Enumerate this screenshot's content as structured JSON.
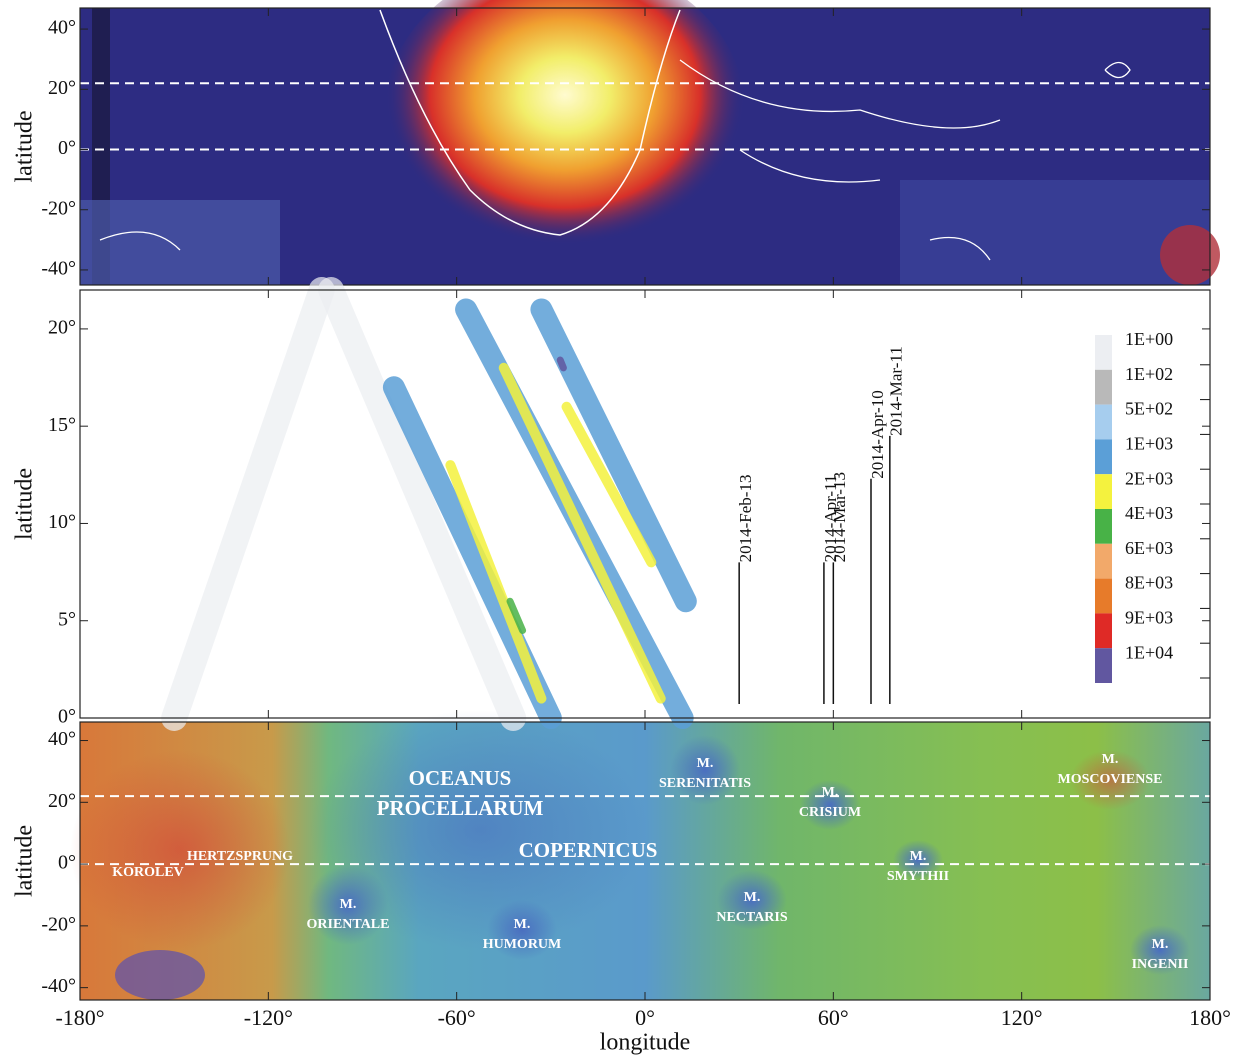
{
  "chart_data": [
    {
      "type": "heatmap",
      "ylabel": "latitude",
      "xlim": [
        -180,
        180
      ],
      "ylim": [
        -45,
        47
      ],
      "yticks": [
        {
          "value": 40,
          "label": "40°"
        },
        {
          "value": 20,
          "label": "20°"
        },
        {
          "value": 0,
          "label": "0°"
        },
        {
          "value": -20,
          "label": "-20°"
        },
        {
          "value": -40,
          "label": "-40°"
        }
      ],
      "reference_lines": [
        22,
        0
      ]
    },
    {
      "type": "contour",
      "ylabel": "latitude",
      "xlim": [
        -180,
        180
      ],
      "ylim": [
        0,
        22
      ],
      "yticks": [
        {
          "value": 0,
          "label": "0°"
        },
        {
          "value": 5,
          "label": "5°"
        },
        {
          "value": 10,
          "label": "10°"
        },
        {
          "value": 15,
          "label": "15°"
        },
        {
          "value": 20,
          "label": "20°"
        }
      ],
      "legend": [
        {
          "value": 1,
          "label": "1E+00",
          "color": "#eceef2"
        },
        {
          "value": 100,
          "label": "1E+02",
          "color": "#b9b9b9"
        },
        {
          "value": 500,
          "label": "5E+02",
          "color": "#a6cdee"
        },
        {
          "value": 1000,
          "label": "1E+03",
          "color": "#5b9fd7"
        },
        {
          "value": 2000,
          "label": "2E+03",
          "color": "#f4f23e"
        },
        {
          "value": 4000,
          "label": "4E+03",
          "color": "#48b247"
        },
        {
          "value": 6000,
          "label": "6E+03",
          "color": "#f2a96a"
        },
        {
          "value": 8000,
          "label": "8E+03",
          "color": "#e77b2a"
        },
        {
          "value": 9000,
          "label": "9E+03",
          "color": "#df2a26"
        },
        {
          "value": 10000,
          "label": "1E+04",
          "color": "#6157a0"
        }
      ],
      "tracks": [
        {
          "x": [
            -150,
            -103
          ],
          "y": [
            0,
            22
          ],
          "value": 1
        },
        {
          "x": [
            -100,
            -42
          ],
          "y": [
            22,
            0
          ],
          "value": 1
        },
        {
          "x": [
            -80,
            -30
          ],
          "y": [
            17,
            0
          ],
          "value": 1000
        },
        {
          "x": [
            -62,
            -33
          ],
          "y": [
            13,
            1
          ],
          "value": 2000
        },
        {
          "x": [
            -57,
            12
          ],
          "y": [
            21,
            0
          ],
          "value": 1000
        },
        {
          "x": [
            -45,
            5
          ],
          "y": [
            18,
            1
          ],
          "value": 2000
        },
        {
          "x": [
            -33,
            13
          ],
          "y": [
            21,
            6
          ],
          "value": 1000
        },
        {
          "x": [
            -25,
            2
          ],
          "y": [
            16,
            8
          ],
          "value": 2000
        },
        {
          "x": [
            -43,
            -39
          ],
          "y": [
            6,
            4.5
          ],
          "value": 4000
        },
        {
          "x": [
            -27,
            -26
          ],
          "y": [
            18.4,
            18
          ],
          "value": 10000
        }
      ],
      "annotations": [
        {
          "label": "2014-Feb-13",
          "x": 30,
          "y": 8
        },
        {
          "label": "2014-Apr-11",
          "x": 57,
          "y": 8
        },
        {
          "label": "2014-Mar-13",
          "x": 60,
          "y": 8
        },
        {
          "label": "2014-Apr-10",
          "x": 72,
          "y": 12.3
        },
        {
          "label": "2014-Mar-11",
          "x": 78,
          "y": 14.5
        }
      ]
    },
    {
      "type": "map",
      "ylabel": "latitude",
      "xlabel": "longitude",
      "xlim": [
        -180,
        180
      ],
      "ylim": [
        -44,
        46
      ],
      "yticks": [
        {
          "value": 40,
          "label": "40°"
        },
        {
          "value": 20,
          "label": "20°"
        },
        {
          "value": 0,
          "label": "0°"
        },
        {
          "value": -20,
          "label": "-20°"
        },
        {
          "value": -40,
          "label": "-40°"
        }
      ],
      "xticks": [
        {
          "value": -180,
          "label": "-180°"
        },
        {
          "value": -120,
          "label": "-120°"
        },
        {
          "value": -60,
          "label": "-60°"
        },
        {
          "value": 0,
          "label": "0°"
        },
        {
          "value": 60,
          "label": "60°"
        },
        {
          "value": 120,
          "label": "120°"
        },
        {
          "value": 180,
          "label": "180°"
        }
      ],
      "reference_lines": [
        22,
        0
      ],
      "labels": [
        [
          "OCEANUS",
          "PROCELLARUM"
        ],
        [
          "COPERNICUS"
        ],
        [
          "M.",
          "SERENITATIS"
        ],
        [
          "M.",
          "CRISIUM"
        ],
        [
          "M.",
          "SMYTHII"
        ],
        [
          "M.",
          "NECTARIS"
        ],
        [
          "M.",
          "HUMORUM"
        ],
        [
          "M.",
          "ORIENTALE"
        ],
        [
          "HERTZSPRUNG"
        ],
        [
          "KOROLEV"
        ],
        [
          "M.",
          "MOSCOVIENSE"
        ],
        [
          "M.",
          "INGENII"
        ]
      ]
    }
  ]
}
